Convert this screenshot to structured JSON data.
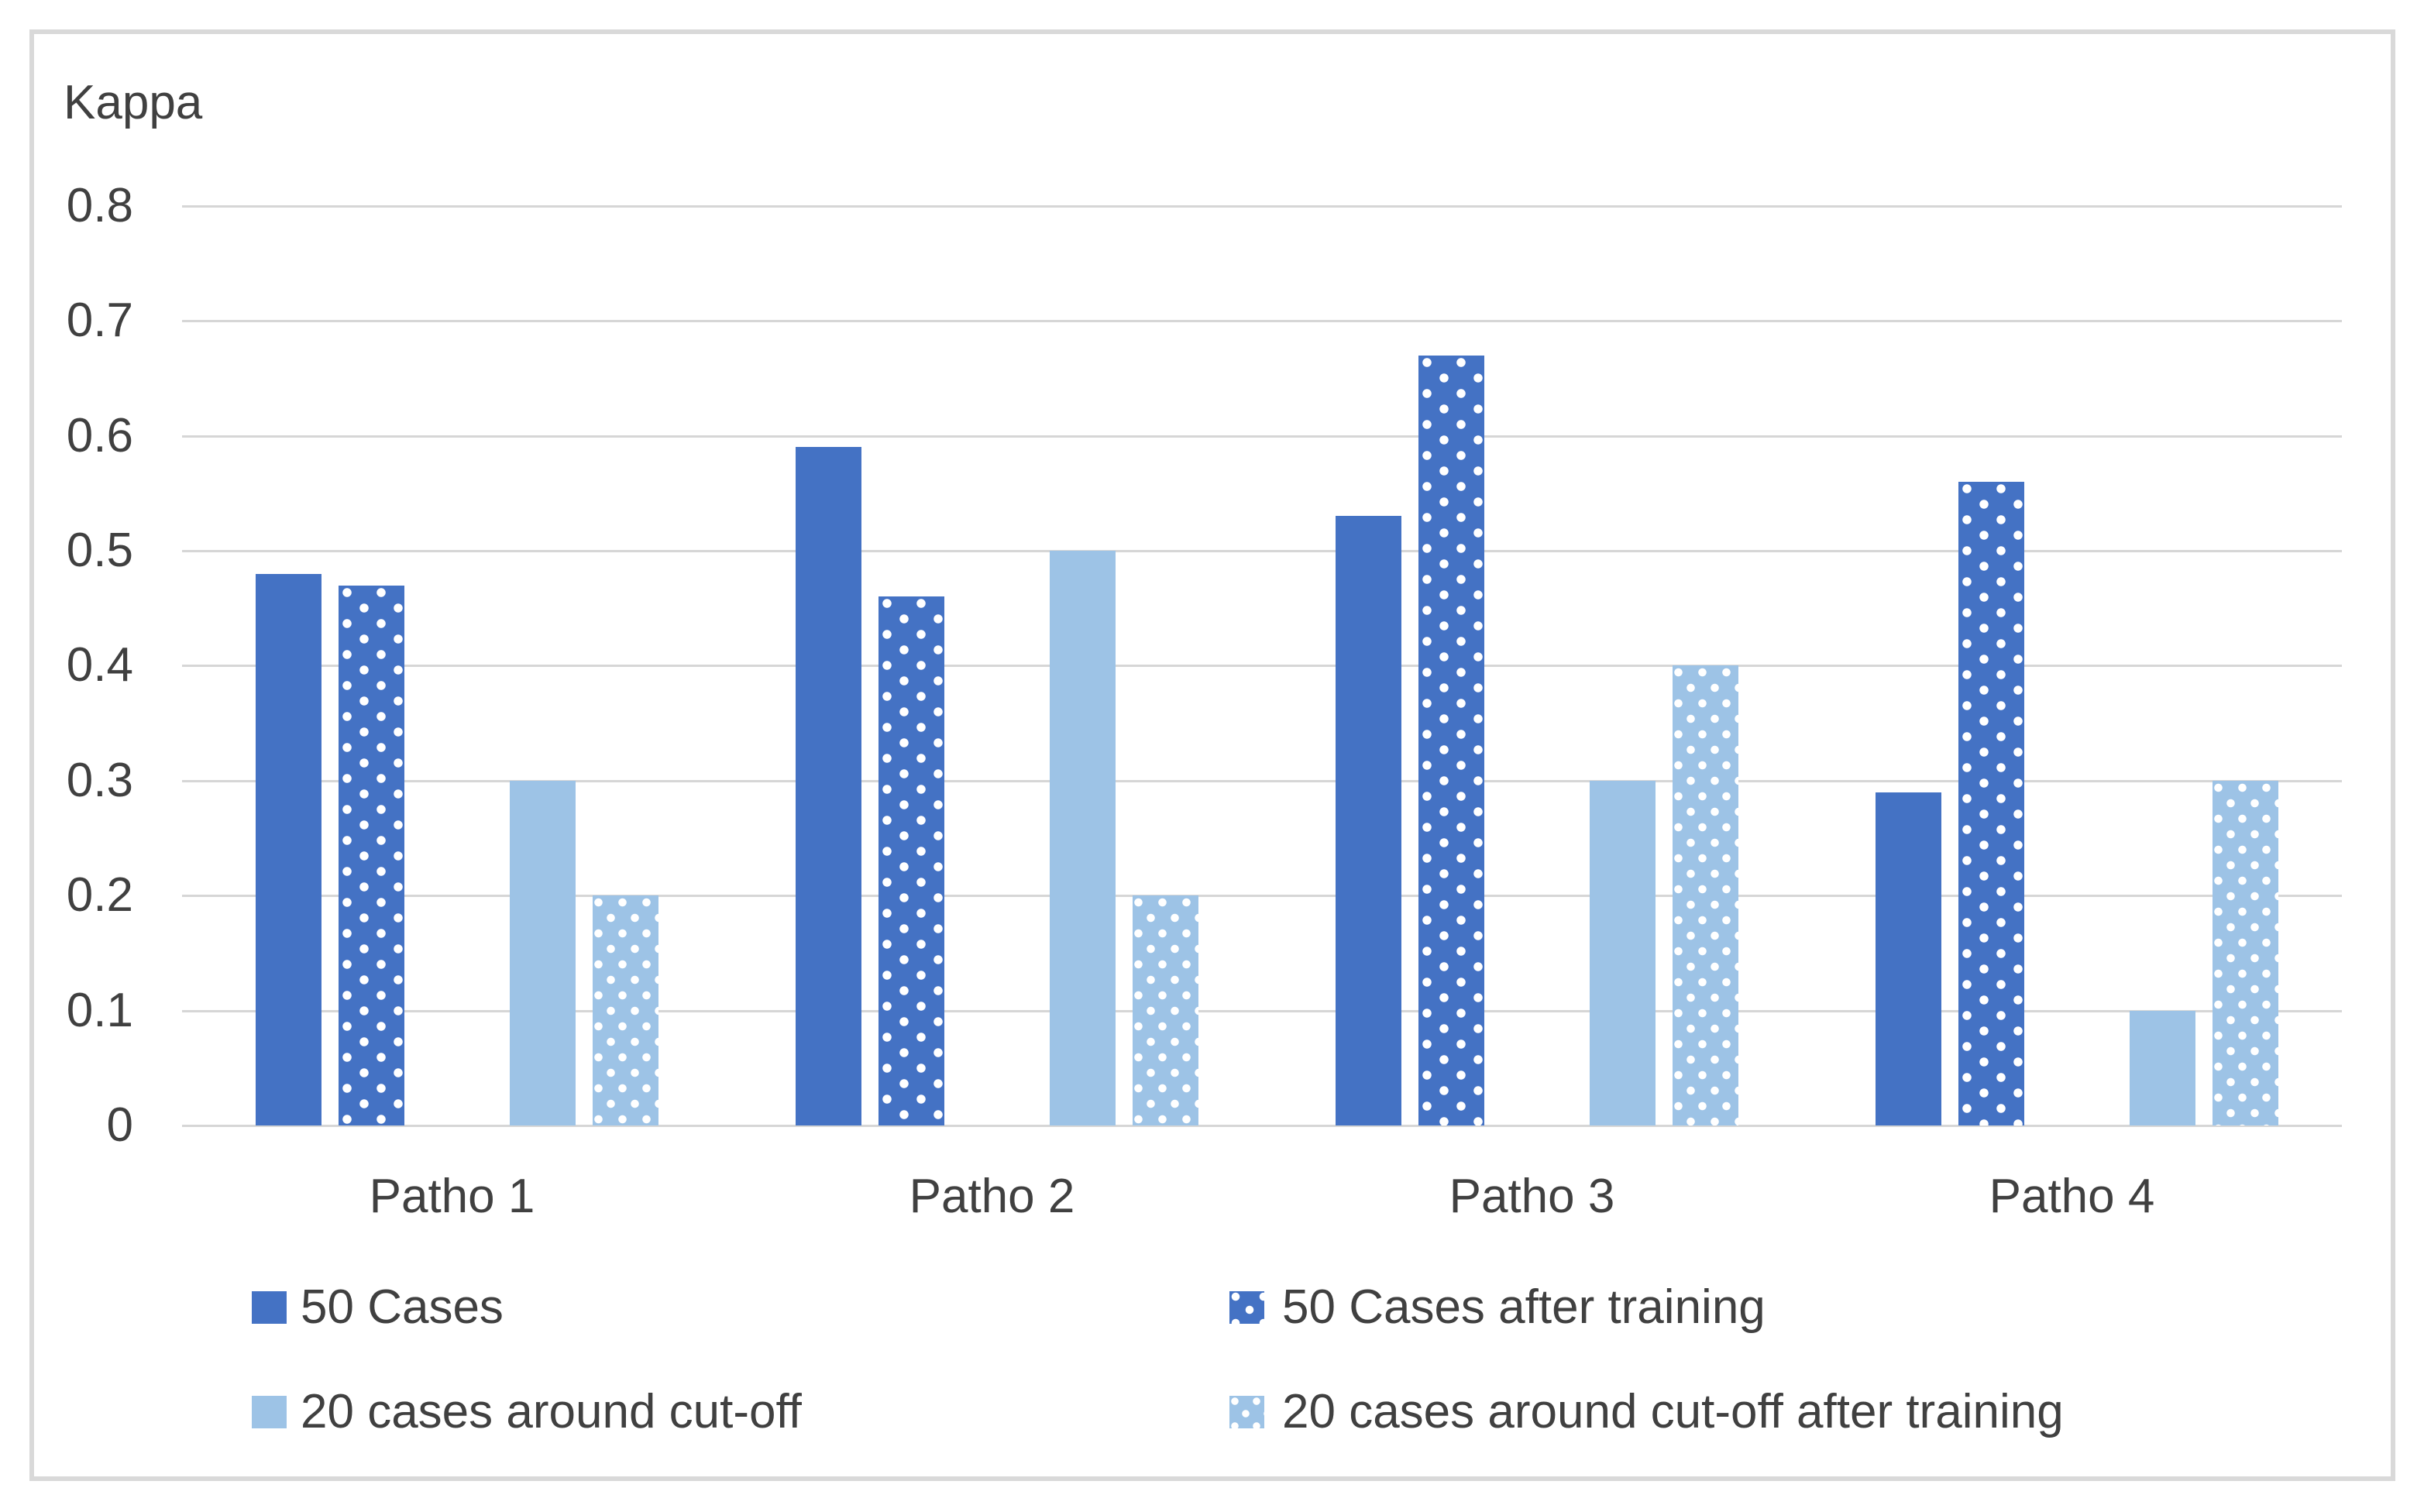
{
  "chart_data": {
    "type": "bar",
    "title": "Kappa",
    "ylabel": "Kappa",
    "xlabel": "",
    "categories": [
      "Patho 1",
      "Patho 2",
      "Patho 3",
      "Patho 4"
    ],
    "series": [
      {
        "name": "50 Cases",
        "style": "solid-dark",
        "values": [
          0.48,
          0.59,
          0.53,
          0.29
        ]
      },
      {
        "name": "50 Cases after training",
        "style": "dotted-dark",
        "values": [
          0.47,
          0.46,
          0.67,
          0.56
        ]
      },
      {
        "name": "20 cases around cut-off",
        "style": "solid-light",
        "values": [
          0.3,
          0.5,
          0.3,
          0.1
        ]
      },
      {
        "name": "20 cases around cut-off after training",
        "style": "dotted-light",
        "values": [
          0.2,
          0.2,
          0.4,
          0.3
        ]
      }
    ],
    "ylim": [
      0,
      0.8
    ],
    "yticks": [
      0.8,
      0.7,
      0.6,
      0.5,
      0.4,
      0.3,
      0.2,
      0.1,
      0
    ],
    "ytick_labels": [
      "0.8",
      "0.7",
      "0.6",
      "0.5",
      "0.4",
      "0.3",
      "0.2",
      "0.1",
      "0"
    ],
    "grid": true,
    "legend_position": "bottom-two-columns",
    "colors": {
      "dark_blue": "#4472C4",
      "light_blue": "#9DC3E6",
      "dot": "#FFFFFF",
      "gridline": "#D6D6D6",
      "text": "#404040",
      "frame_border": "#D9D9D9",
      "background": "#FFFFFF"
    }
  }
}
